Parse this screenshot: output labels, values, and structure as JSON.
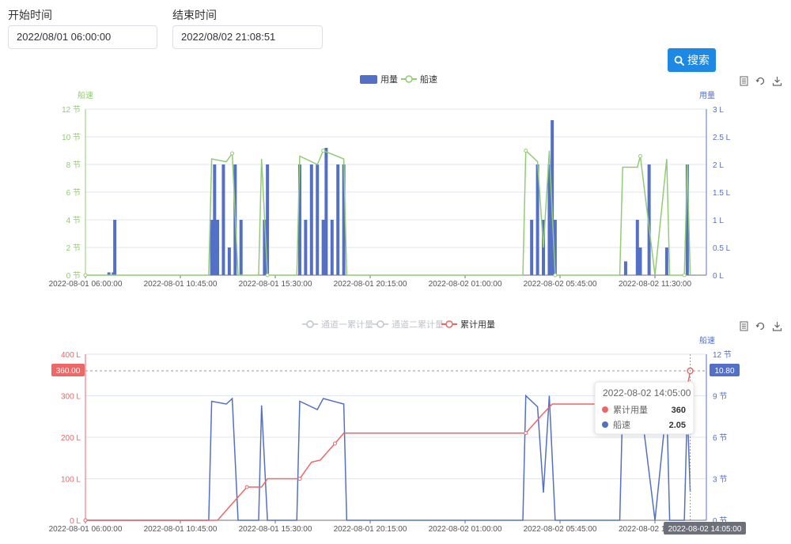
{
  "filters": {
    "start_label": "开始时间",
    "start_value": "2022/08/01 06:00:00",
    "end_label": "结束时间",
    "end_value": "2022/08/02 21:08:51",
    "search_label": "搜索"
  },
  "colors": {
    "blue": "#5470c6",
    "green": "#91cc75",
    "red": "#ee6666",
    "grey": "#c0c4cc"
  },
  "chart_data": [
    {
      "type": "bar",
      "legend": [
        "用量",
        "船速"
      ],
      "y_left": {
        "label": "船速",
        "ticks": [
          "0 节",
          "2 节",
          "4 节",
          "6 节",
          "8 节",
          "10 节",
          "12 节"
        ],
        "ylim": [
          0,
          12
        ]
      },
      "y_right": {
        "label": "用量",
        "ticks": [
          "0 L",
          "0.5 L",
          "1 L",
          "1.5 L",
          "2 L",
          "2.5 L",
          "3 L"
        ],
        "ylim": [
          0,
          3
        ]
      },
      "x_ticks": [
        "2022-08-01 06:00:00",
        "2022-08-01 10:45:00",
        "2022-08-01 15:30:00",
        "2022-08-01 20:15:00",
        "2022-08-02 01:00:00",
        "2022-08-02 05:45:00",
        "2022-08-02 11:30:00"
      ],
      "series": [
        {
          "name": "用量",
          "type": "bar",
          "values": [
            [
              0.8,
              0.05
            ],
            [
              0.95,
              0.05
            ],
            [
              1.0,
              1.0
            ],
            [
              4.3,
              1.0
            ],
            [
              4.4,
              2.0
            ],
            [
              4.5,
              1.0
            ],
            [
              4.7,
              2.0
            ],
            [
              4.9,
              0.5
            ],
            [
              5.1,
              2.0
            ],
            [
              5.3,
              1.0
            ],
            [
              6.1,
              1.0
            ],
            [
              6.2,
              2.0
            ],
            [
              7.3,
              2.0
            ],
            [
              7.5,
              1.0
            ],
            [
              7.7,
              2.0
            ],
            [
              7.9,
              2.0
            ],
            [
              8.1,
              1.0
            ],
            [
              8.2,
              2.3
            ],
            [
              8.4,
              1.0
            ],
            [
              8.6,
              2.0
            ],
            [
              8.8,
              2.0
            ],
            [
              15.2,
              1.0
            ],
            [
              15.4,
              2.0
            ],
            [
              15.6,
              1.0
            ],
            [
              15.8,
              2.0
            ],
            [
              15.9,
              2.8
            ],
            [
              16.0,
              1.0
            ],
            [
              18.4,
              0.25
            ],
            [
              18.8,
              1.0
            ],
            [
              18.9,
              0.5
            ],
            [
              19.2,
              2.0
            ],
            [
              19.8,
              0.5
            ],
            [
              20.5,
              2.0
            ]
          ]
        },
        {
          "name": "船速",
          "type": "line",
          "values": [
            [
              0,
              0
            ],
            [
              4.2,
              0
            ],
            [
              4.3,
              8.4
            ],
            [
              4.8,
              8.2
            ],
            [
              5.0,
              8.8
            ],
            [
              5.2,
              0
            ],
            [
              5.9,
              0
            ],
            [
              6.0,
              8.4
            ],
            [
              6.2,
              0
            ],
            [
              7.2,
              0
            ],
            [
              7.3,
              8.6
            ],
            [
              7.9,
              8.0
            ],
            [
              8.1,
              9.0
            ],
            [
              8.8,
              8.4
            ],
            [
              8.9,
              0
            ],
            [
              14.9,
              0
            ],
            [
              15.0,
              9.0
            ],
            [
              15.4,
              8.2
            ],
            [
              15.6,
              2.0
            ],
            [
              15.8,
              9.0
            ],
            [
              16.0,
              0
            ],
            [
              18.2,
              0
            ],
            [
              18.3,
              7.8
            ],
            [
              18.8,
              7.8
            ],
            [
              18.9,
              8.6
            ],
            [
              19.4,
              0
            ],
            [
              19.8,
              8.4
            ],
            [
              19.9,
              0
            ],
            [
              20.4,
              0
            ],
            [
              20.5,
              8.0
            ],
            [
              20.6,
              0
            ]
          ]
        }
      ]
    },
    {
      "type": "line",
      "legend": [
        "通道一累计量",
        "通道二累计量",
        "累计用量"
      ],
      "y_left": {
        "ticks": [
          "0 L",
          "100 L",
          "200 L",
          "300 L",
          "400 L"
        ],
        "ylim": [
          0,
          400
        ]
      },
      "y_right": {
        "label": "船速",
        "ticks": [
          "0 节",
          "3 节",
          "6 节",
          "9 节",
          "12 节"
        ],
        "ylim": [
          0,
          12
        ]
      },
      "x_ticks": [
        "2022-08-01 06:00:00",
        "2022-08-01 10:45:00",
        "2022-08-01 15:30:00",
        "2022-08-01 20:15:00",
        "2022-08-02 01:00:00",
        "2022-08-02 05:45:00",
        "2022-08-02 11:30:00"
      ],
      "markline_left": "360.00",
      "markline_right": "10.80",
      "axis_pointer_label": "2022-08-02 14:05:00",
      "tooltip": {
        "title": "2022-08-02 14:05:00",
        "rows": [
          {
            "name": "累计用量",
            "value": "360"
          },
          {
            "name": "船速",
            "value": "2.05"
          }
        ]
      },
      "series": [
        {
          "name": "累计用量",
          "values": [
            [
              0,
              0
            ],
            [
              4.5,
              0
            ],
            [
              5.0,
              40
            ],
            [
              5.5,
              80
            ],
            [
              6.0,
              80
            ],
            [
              6.2,
              100
            ],
            [
              7.3,
              100
            ],
            [
              7.7,
              140
            ],
            [
              8.0,
              145
            ],
            [
              8.5,
              185
            ],
            [
              8.8,
              210
            ],
            [
              12.0,
              210
            ],
            [
              15.0,
              210
            ],
            [
              15.5,
              250
            ],
            [
              15.9,
              280
            ],
            [
              17.8,
              280
            ],
            [
              18.5,
              280
            ],
            [
              19.8,
              320
            ],
            [
              20.5,
              320
            ],
            [
              20.6,
              360
            ]
          ]
        },
        {
          "name": "船速",
          "values": [
            [
              0,
              0
            ],
            [
              4.2,
              0
            ],
            [
              4.3,
              8.6
            ],
            [
              4.8,
              8.4
            ],
            [
              5.0,
              8.8
            ],
            [
              5.2,
              0
            ],
            [
              5.9,
              0
            ],
            [
              6.0,
              8.3
            ],
            [
              6.2,
              0
            ],
            [
              7.2,
              0
            ],
            [
              7.3,
              8.6
            ],
            [
              7.9,
              8.0
            ],
            [
              8.1,
              8.8
            ],
            [
              8.8,
              8.4
            ],
            [
              8.9,
              0
            ],
            [
              14.9,
              0
            ],
            [
              15.0,
              9.0
            ],
            [
              15.4,
              8.2
            ],
            [
              15.6,
              2.0
            ],
            [
              15.8,
              9.0
            ],
            [
              16.0,
              0
            ],
            [
              18.2,
              0
            ],
            [
              18.3,
              8.5
            ],
            [
              18.8,
              6.5
            ],
            [
              18.9,
              8.6
            ],
            [
              19.4,
              0
            ],
            [
              19.8,
              8.4
            ],
            [
              19.9,
              0
            ],
            [
              20.4,
              0
            ],
            [
              20.5,
              8.1
            ],
            [
              20.6,
              2.05
            ]
          ]
        }
      ]
    }
  ]
}
